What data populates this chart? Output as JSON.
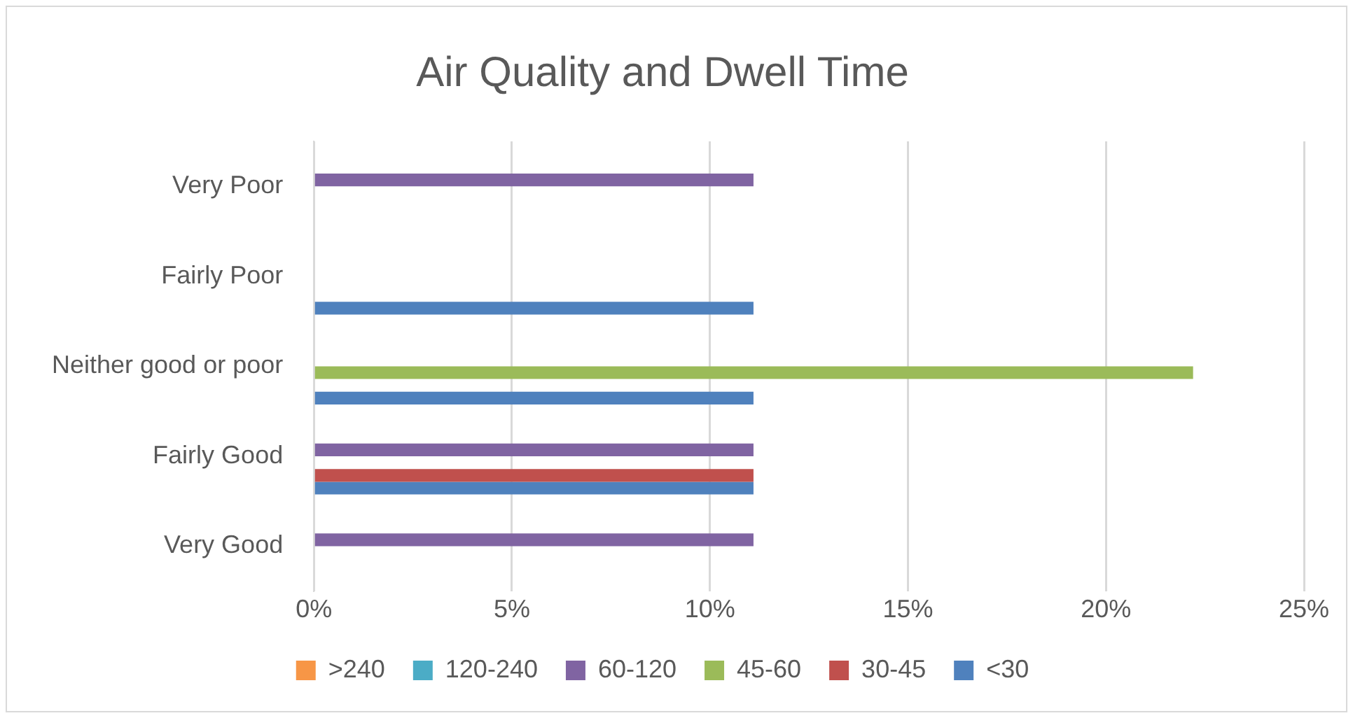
{
  "chart_data": {
    "type": "bar",
    "orientation": "horizontal",
    "title": "Air Quality and Dwell Time",
    "categories": [
      "Very Poor",
      "Fairly Poor",
      "Neither good or poor",
      "Fairly Good",
      "Very Good"
    ],
    "series": [
      {
        "name": ">240",
        "color": "#f79646",
        "values": [
          null,
          null,
          null,
          null,
          null
        ]
      },
      {
        "name": "120-240",
        "color": "#4bacc6",
        "values": [
          null,
          null,
          null,
          null,
          null
        ]
      },
      {
        "name": "60-120",
        "color": "#8064a2",
        "values": [
          11.1,
          null,
          null,
          11.1,
          11.1
        ]
      },
      {
        "name": "45-60",
        "color": "#9bbb59",
        "values": [
          null,
          null,
          22.2,
          null,
          null
        ]
      },
      {
        "name": "30-45",
        "color": "#c0504d",
        "values": [
          null,
          null,
          null,
          11.1,
          null
        ]
      },
      {
        "name": "<30",
        "color": "#4f81bd",
        "values": [
          null,
          11.1,
          11.1,
          11.1,
          null
        ]
      }
    ],
    "xlim": [
      0,
      25
    ],
    "xticks": [
      {
        "value": 0,
        "label": "0%"
      },
      {
        "value": 5,
        "label": "5%"
      },
      {
        "value": 10,
        "label": "10%"
      },
      {
        "value": 15,
        "label": "15%"
      },
      {
        "value": 20,
        "label": "20%"
      },
      {
        "value": 25,
        "label": "25%"
      }
    ],
    "grid": "x",
    "legend": "bottom"
  }
}
